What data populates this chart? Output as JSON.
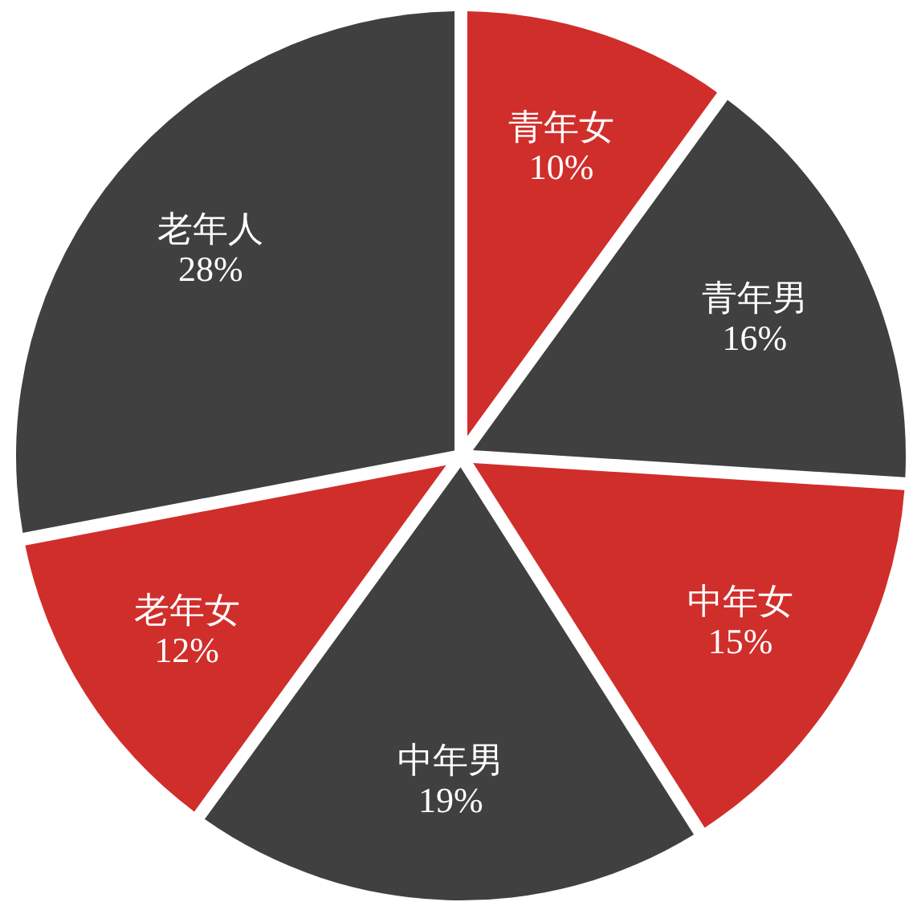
{
  "chart_data": {
    "type": "pie",
    "categories": [
      "青年女",
      "青年男",
      "中年女",
      "中年男",
      "老年女",
      "老年人"
    ],
    "values": [
      10,
      16,
      15,
      19,
      12,
      28
    ],
    "value_labels": [
      "10%",
      "16%",
      "15%",
      "19%",
      "12%",
      "28%"
    ],
    "colors": [
      "#d02e2b",
      "#404040",
      "#d02e2b",
      "#404040",
      "#d02e2b",
      "#404040"
    ]
  }
}
